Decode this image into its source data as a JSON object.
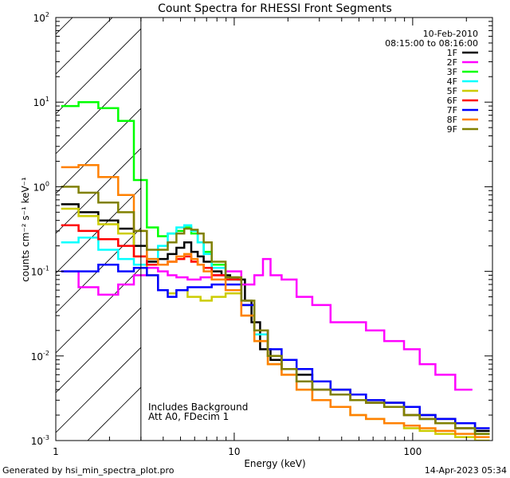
{
  "chart_data": {
    "type": "line",
    "title": "Count Spectra for RHESSI Front Segments",
    "xlabel": "Energy (keV)",
    "ylabel": "counts cm⁻² s⁻¹ keV⁻¹",
    "xscale": "log",
    "yscale": "log",
    "xlim": [
      1,
      280
    ],
    "ylim": [
      0.001,
      100
    ],
    "x_ticks": [
      {
        "value": 1,
        "label": "1"
      },
      {
        "value": 10,
        "label": "10"
      },
      {
        "value": 100,
        "label": "100"
      }
    ],
    "y_ticks": [
      {
        "value": 0.001,
        "base": "10",
        "exp": "-3"
      },
      {
        "value": 0.01,
        "base": "10",
        "exp": "-2"
      },
      {
        "value": 0.1,
        "base": "10",
        "exp": "-1"
      },
      {
        "value": 1,
        "base": "10",
        "exp": "0"
      },
      {
        "value": 10,
        "base": "10",
        "exp": "1"
      },
      {
        "value": 100,
        "base": "10",
        "exp": "2"
      }
    ],
    "date": "10-Feb-2010",
    "time_range": "08:15:00 to 08:16:00",
    "excluded_region_max_keV": 3,
    "annotations": [
      "Includes Background",
      "Att A0, FDecim 1"
    ],
    "legend_position": "top-right",
    "series": [
      {
        "name": "1F",
        "color": "#000000",
        "x": [
          1.2,
          1.5,
          2.0,
          2.5,
          3.0,
          3.5,
          4.0,
          4.5,
          5.0,
          5.5,
          6.0,
          6.5,
          7.0,
          8.0,
          9.0,
          10,
          11,
          12,
          13,
          15,
          17,
          20,
          25,
          30,
          40,
          50,
          60,
          80,
          100,
          120,
          150,
          200,
          250
        ],
        "y": [
          0.62,
          0.5,
          0.4,
          0.32,
          0.2,
          0.13,
          0.14,
          0.16,
          0.19,
          0.22,
          0.17,
          0.15,
          0.13,
          0.1,
          0.09,
          0.085,
          0.08,
          0.045,
          0.025,
          0.012,
          0.009,
          0.007,
          0.006,
          0.005,
          0.004,
          0.0035,
          0.003,
          0.0028,
          0.0025,
          0.002,
          0.0018,
          0.0016,
          0.0013
        ]
      },
      {
        "name": "2F",
        "color": "#ff00ff",
        "x": [
          1.2,
          1.5,
          2.0,
          2.5,
          3.0,
          3.5,
          4.0,
          4.5,
          5.0,
          6.0,
          7.0,
          8.0,
          10,
          12,
          14,
          15,
          17,
          20,
          25,
          30,
          40,
          50,
          60,
          80,
          100,
          120,
          150,
          200
        ],
        "y": [
          0.1,
          0.065,
          0.053,
          0.07,
          0.09,
          0.11,
          0.1,
          0.09,
          0.085,
          0.08,
          0.085,
          0.09,
          0.1,
          0.07,
          0.09,
          0.14,
          0.09,
          0.08,
          0.05,
          0.04,
          0.025,
          0.025,
          0.02,
          0.015,
          0.012,
          0.008,
          0.006,
          0.004
        ]
      },
      {
        "name": "3F",
        "color": "#00ff00",
        "x": [
          1.2,
          1.5,
          2.0,
          2.5,
          3.0,
          3.5,
          4.0,
          4.5,
          5.0,
          5.5,
          6.0,
          6.5,
          7.0,
          8.0,
          10,
          12,
          14,
          17,
          20,
          25,
          30,
          40,
          50,
          60,
          80,
          100,
          120,
          150,
          200,
          250
        ],
        "y": [
          9.0,
          10.0,
          8.5,
          6.0,
          1.2,
          0.33,
          0.26,
          0.28,
          0.3,
          0.33,
          0.28,
          0.22,
          0.17,
          0.12,
          0.08,
          0.04,
          0.02,
          0.01,
          0.007,
          0.005,
          0.004,
          0.0035,
          0.003,
          0.0028,
          0.0025,
          0.002,
          0.0018,
          0.0016,
          0.0014,
          0.0012
        ]
      },
      {
        "name": "4F",
        "color": "#00ffff",
        "x": [
          1.2,
          1.5,
          2.0,
          2.5,
          3.0,
          3.5,
          4.0,
          4.5,
          5.0,
          5.5,
          6.0,
          6.5,
          7.0,
          8.0,
          10,
          12,
          14,
          17,
          20,
          25,
          30,
          40,
          50,
          60,
          80,
          100,
          120,
          150,
          200
        ],
        "y": [
          0.22,
          0.25,
          0.18,
          0.14,
          0.12,
          0.14,
          0.2,
          0.28,
          0.33,
          0.35,
          0.3,
          0.22,
          0.16,
          0.11,
          0.08,
          0.04,
          0.018,
          0.01,
          0.007,
          0.005,
          0.004,
          0.0035,
          0.003,
          0.0028,
          0.0025,
          0.002,
          0.0018,
          0.0016,
          0.0014
        ]
      },
      {
        "name": "5F",
        "color": "#cccc00",
        "x": [
          1.2,
          1.5,
          2.0,
          2.5,
          3.0,
          3.5,
          4.0,
          4.5,
          5.0,
          6.0,
          7.0,
          8.0,
          10,
          12,
          14,
          17,
          20,
          25,
          30,
          40,
          50,
          60,
          80,
          100,
          120,
          150,
          200,
          250
        ],
        "y": [
          0.55,
          0.45,
          0.36,
          0.28,
          0.15,
          0.09,
          0.06,
          0.055,
          0.06,
          0.05,
          0.045,
          0.05,
          0.055,
          0.03,
          0.015,
          0.008,
          0.006,
          0.004,
          0.003,
          0.0025,
          0.002,
          0.0018,
          0.0016,
          0.0014,
          0.0013,
          0.0012,
          0.0011,
          0.001
        ]
      },
      {
        "name": "6F",
        "color": "#ff0000",
        "x": [
          1.2,
          1.5,
          2.0,
          2.5,
          3.0,
          3.5,
          4.0,
          4.5,
          5.0,
          5.5,
          6.0,
          6.5,
          7.0,
          8.0,
          10,
          12,
          14,
          17,
          20,
          25,
          30,
          40,
          50,
          60,
          80,
          100,
          120,
          150,
          200
        ],
        "y": [
          0.35,
          0.3,
          0.24,
          0.2,
          0.15,
          0.12,
          0.12,
          0.13,
          0.14,
          0.15,
          0.13,
          0.12,
          0.11,
          0.09,
          0.08,
          0.04,
          0.02,
          0.01,
          0.007,
          0.005,
          0.004,
          0.0035,
          0.003,
          0.0028,
          0.0025,
          0.002,
          0.0018,
          0.0016,
          0.0014
        ]
      },
      {
        "name": "7F",
        "color": "#0000ff",
        "x": [
          1.2,
          1.5,
          2.0,
          2.5,
          3.0,
          3.5,
          4.0,
          4.5,
          5.0,
          6.0,
          7.0,
          8.0,
          10,
          12,
          14,
          17,
          20,
          25,
          30,
          40,
          50,
          60,
          80,
          100,
          120,
          150,
          200,
          250
        ],
        "y": [
          0.1,
          0.1,
          0.12,
          0.1,
          0.11,
          0.09,
          0.06,
          0.05,
          0.06,
          0.065,
          0.065,
          0.07,
          0.07,
          0.04,
          0.02,
          0.012,
          0.009,
          0.007,
          0.005,
          0.004,
          0.0035,
          0.003,
          0.0028,
          0.0025,
          0.002,
          0.0018,
          0.0016,
          0.0014
        ]
      },
      {
        "name": "8F",
        "color": "#ff8000",
        "x": [
          1.2,
          1.5,
          2.0,
          2.5,
          3.0,
          3.5,
          4.0,
          4.5,
          5.0,
          5.5,
          6.0,
          6.5,
          7.0,
          8.0,
          10,
          12,
          14,
          17,
          20,
          25,
          30,
          40,
          50,
          60,
          80,
          100,
          120,
          150,
          200,
          250
        ],
        "y": [
          1.7,
          1.8,
          1.3,
          0.8,
          0.3,
          0.14,
          0.12,
          0.13,
          0.15,
          0.16,
          0.14,
          0.12,
          0.1,
          0.08,
          0.06,
          0.03,
          0.015,
          0.008,
          0.006,
          0.004,
          0.003,
          0.0025,
          0.002,
          0.0018,
          0.0016,
          0.0015,
          0.0014,
          0.0013,
          0.0012,
          0.0011
        ]
      },
      {
        "name": "9F",
        "color": "#808000",
        "x": [
          1.2,
          1.5,
          2.0,
          2.5,
          3.0,
          3.5,
          4.0,
          4.5,
          5.0,
          5.5,
          6.0,
          6.5,
          7.0,
          8.0,
          10,
          12,
          14,
          17,
          20,
          25,
          30,
          40,
          50,
          60,
          80,
          100,
          120,
          150,
          200,
          250
        ],
        "y": [
          1.0,
          0.85,
          0.65,
          0.5,
          0.3,
          0.18,
          0.18,
          0.22,
          0.28,
          0.32,
          0.31,
          0.28,
          0.22,
          0.13,
          0.085,
          0.045,
          0.02,
          0.01,
          0.007,
          0.005,
          0.004,
          0.0035,
          0.003,
          0.0028,
          0.0025,
          0.002,
          0.0018,
          0.0016,
          0.0014,
          0.0012
        ]
      }
    ]
  },
  "footer": {
    "generated_by": "Generated by hsi_min_spectra_plot.pro",
    "timestamp": "14-Apr-2023 05:34"
  },
  "colors": {
    "background": "#ffffff",
    "axis": "#000000"
  }
}
